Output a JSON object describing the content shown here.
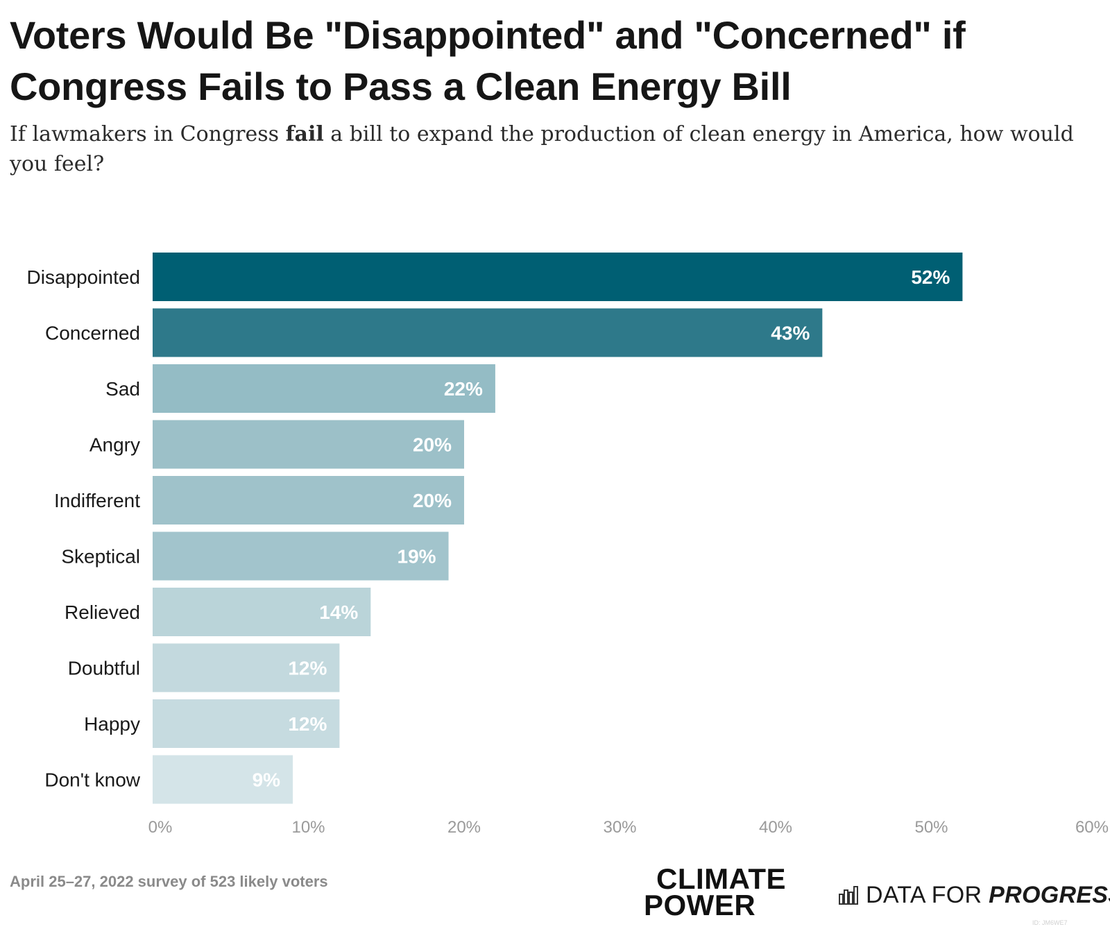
{
  "header": {
    "title": "Voters Would Be \"Disappointed\" and \"Concerned\" if Congress Fails to Pass a Clean Energy Bill",
    "subtitle_before": "If lawmakers in Congress ",
    "subtitle_bold": "fail",
    "subtitle_after": " a bill to expand the production of clean energy in America, how would you feel?"
  },
  "footer": {
    "note": "April 25–27, 2022 survey of 523 likely voters",
    "logo_climate_power_line1": "CLIMATE",
    "logo_climate_power_line2": "POWER",
    "logo_dfp_prefix": "DATA FOR ",
    "logo_dfp_strong": "PROGRESS",
    "watermark": "ID: JM6WE7"
  },
  "chart_data": {
    "type": "bar",
    "orientation": "horizontal",
    "categories": [
      "Disappointed",
      "Concerned",
      "Sad",
      "Angry",
      "Indifferent",
      "Skeptical",
      "Relieved",
      "Doubtful",
      "Happy",
      "Don't know"
    ],
    "values": [
      52,
      43,
      22,
      20,
      20,
      19,
      14,
      12,
      12,
      9
    ],
    "data_labels": [
      "52%",
      "43%",
      "22%",
      "20%",
      "20%",
      "19%",
      "14%",
      "12%",
      "12%",
      "9%"
    ],
    "bar_colors": [
      "#005f73",
      "#2e798a",
      "#94bcc5",
      "#9cc0c8",
      "#9fc2ca",
      "#a2c4cc",
      "#bad4d9",
      "#c3d9de",
      "#c6dbe0",
      "#d4e4e8"
    ],
    "xlim": [
      0,
      60
    ],
    "x_ticks": [
      0,
      10,
      20,
      30,
      40,
      50,
      60
    ],
    "x_tick_labels": [
      "0%",
      "10%",
      "20%",
      "30%",
      "40%",
      "50%",
      "60%"
    ],
    "grid": false,
    "legend": "none"
  }
}
